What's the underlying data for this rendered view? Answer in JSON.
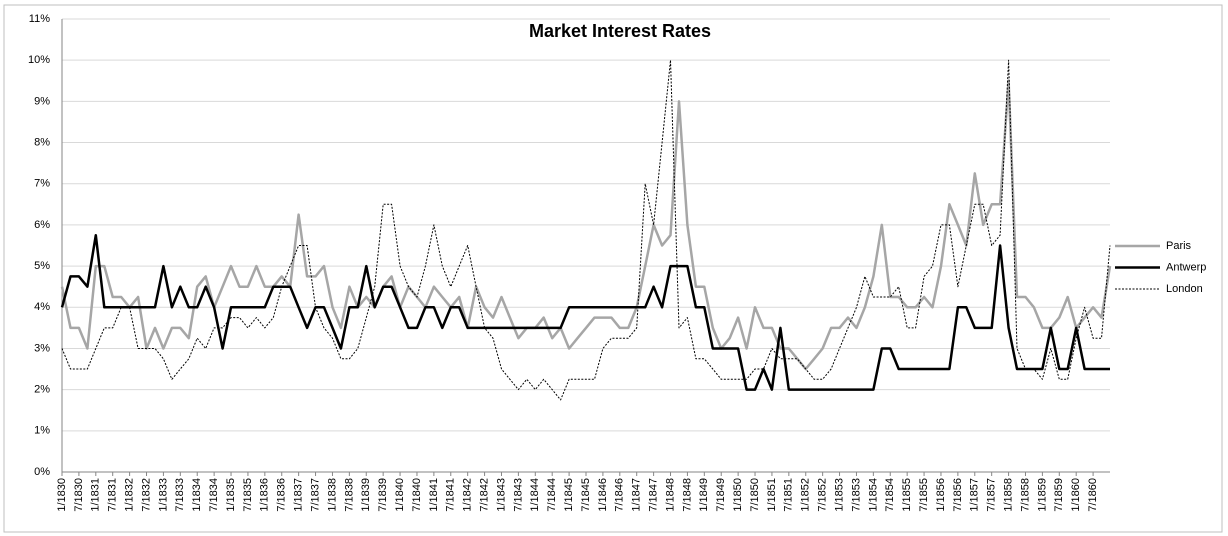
{
  "chart_data": {
    "type": "line",
    "title": "Market Interest Rates",
    "categories": [
      "1/1830",
      null,
      "7/1830",
      null,
      "1/1831",
      null,
      "7/1831",
      null,
      "1/1832",
      null,
      "7/1832",
      null,
      "1/1833",
      null,
      "7/1833",
      null,
      "1/1834",
      null,
      "7/1834",
      null,
      "1/1835",
      null,
      "7/1835",
      null,
      "1/1836",
      null,
      "7/1836",
      null,
      "1/1837",
      null,
      "7/1837",
      null,
      "1/1838",
      null,
      "7/1838",
      null,
      "1/1839",
      null,
      "7/1839",
      null,
      "1/1840",
      null,
      "7/1840",
      null,
      "1/1841",
      null,
      "7/1841",
      null,
      "1/1842",
      null,
      "7/1842",
      null,
      "1/1843",
      null,
      "7/1843",
      null,
      "1/1844",
      null,
      "7/1844",
      null,
      "1/1845",
      null,
      "7/1845",
      null,
      "1/1846",
      null,
      "7/1846",
      null,
      "1/1847",
      null,
      "7/1847",
      null,
      "1/1848",
      null,
      "7/1848",
      null,
      "1/1849",
      null,
      "7/1849",
      null,
      "1/1850",
      null,
      "7/1850",
      null,
      "1/1851",
      null,
      "7/1851",
      null,
      "1/1852",
      null,
      "7/1852",
      null,
      "1/1853",
      null,
      "7/1853",
      null,
      "1/1854",
      null,
      "7/1854",
      null,
      "1/1855",
      null,
      "7/1855",
      null,
      "1/1856",
      null,
      "7/1856",
      null,
      "1/1857",
      null,
      "7/1857",
      null,
      "1/1858",
      null,
      "7/1858",
      null,
      "1/1859",
      null,
      "7/1859",
      null,
      "1/1860",
      null,
      "7/1860",
      null,
      null
    ],
    "series": [
      {
        "name": "Paris",
        "color": "#a6a6a6",
        "width": 2.5,
        "dash": false,
        "values": [
          4.5,
          3.5,
          3.5,
          3,
          5,
          5,
          4.25,
          4.25,
          4,
          4.25,
          3,
          3.5,
          3,
          3.5,
          3.5,
          3.25,
          4.5,
          4.75,
          4,
          4.5,
          5,
          4.5,
          4.5,
          5,
          4.5,
          4.5,
          4.75,
          4.5,
          6.25,
          4.75,
          4.75,
          5,
          4,
          3.5,
          4.5,
          4,
          4.25,
          4,
          4.5,
          4.75,
          4,
          4.5,
          4.25,
          4,
          4.5,
          4.25,
          4,
          4.25,
          3.5,
          4.5,
          4,
          3.75,
          4.25,
          3.75,
          3.25,
          3.5,
          3.5,
          3.75,
          3.25,
          3.5,
          3,
          3.25,
          3.5,
          3.75,
          3.75,
          3.75,
          3.5,
          3.5,
          4,
          5,
          6,
          5.5,
          5.75,
          9,
          6,
          4.5,
          4.5,
          3.5,
          3,
          3.25,
          3.75,
          3,
          4,
          3.5,
          3.5,
          3,
          3,
          2.75,
          2.5,
          2.75,
          3,
          3.5,
          3.5,
          3.75,
          3.5,
          4,
          4.75,
          6,
          4.25,
          4.25,
          4,
          4,
          4.25,
          4,
          5,
          6.5,
          6,
          5.5,
          7.25,
          6,
          6.5,
          6.5,
          9.5,
          4.25,
          4.25,
          4,
          3.5,
          3.5,
          3.75,
          4.25,
          3.5,
          3.75,
          4,
          3.75,
          5
        ]
      },
      {
        "name": "Antwerp",
        "color": "#000000",
        "width": 2.5,
        "dash": false,
        "values": [
          4,
          4.75,
          4.75,
          4.5,
          5.75,
          4,
          4,
          4,
          4,
          4,
          4,
          4,
          5,
          4,
          4.5,
          4,
          4,
          4.5,
          4,
          3,
          4,
          4,
          4,
          4,
          4,
          4.5,
          4.5,
          4.5,
          4,
          3.5,
          4,
          4,
          3.5,
          3,
          4,
          4,
          5,
          4,
          4.5,
          4.5,
          4,
          3.5,
          3.5,
          4,
          4,
          3.5,
          4,
          4,
          3.5,
          3.5,
          3.5,
          3.5,
          3.5,
          3.5,
          3.5,
          3.5,
          3.5,
          3.5,
          3.5,
          3.5,
          4,
          4,
          4,
          4,
          4,
          4,
          4,
          4,
          4,
          4,
          4.5,
          4,
          5,
          5,
          5,
          4,
          4,
          3,
          3,
          3,
          3,
          2,
          2,
          2.5,
          2,
          3.5,
          2,
          2,
          2,
          2,
          2,
          2,
          2,
          2,
          2,
          2,
          2,
          3,
          3,
          2.5,
          2.5,
          2.5,
          2.5,
          2.5,
          2.5,
          2.5,
          4,
          4,
          3.5,
          3.5,
          3.5,
          5.5,
          3.5,
          2.5,
          2.5,
          2.5,
          2.5,
          3.5,
          2.5,
          2.5,
          3.5,
          2.5,
          2.5,
          2.5,
          2.5
        ]
      },
      {
        "name": "London",
        "color": "#000000",
        "width": 1,
        "dash": true,
        "values": [
          3,
          2.5,
          2.5,
          2.5,
          3,
          3.5,
          3.5,
          4,
          4,
          3,
          3,
          3,
          2.75,
          2.25,
          2.5,
          2.75,
          3.25,
          3,
          3.5,
          3.5,
          3.75,
          3.75,
          3.5,
          3.75,
          3.5,
          3.75,
          4.5,
          5,
          5.5,
          5.5,
          4,
          3.5,
          3.25,
          2.75,
          2.75,
          3,
          3.75,
          4.5,
          6.5,
          6.5,
          5,
          4.5,
          4.25,
          5,
          6,
          5,
          4.5,
          5,
          5.5,
          4.5,
          3.5,
          3.25,
          2.5,
          2.25,
          2,
          2.25,
          2,
          2.25,
          2,
          1.75,
          2.25,
          2.25,
          2.25,
          2.25,
          3,
          3.25,
          3.25,
          3.25,
          3.5,
          7,
          6,
          8,
          10,
          3.5,
          3.75,
          2.75,
          2.75,
          2.5,
          2.25,
          2.25,
          2.25,
          2.25,
          2.5,
          2.5,
          3,
          2.75,
          2.75,
          2.75,
          2.5,
          2.25,
          2.25,
          2.5,
          3,
          3.5,
          4,
          4.75,
          4.25,
          4.25,
          4.25,
          4.5,
          3.5,
          3.5,
          4.75,
          5,
          6,
          6,
          4.5,
          5.5,
          6.5,
          6.5,
          5.5,
          5.75,
          10,
          3,
          2.5,
          2.5,
          2.25,
          3,
          2.25,
          2.25,
          3.25,
          4,
          3.25,
          3.25,
          5.5
        ]
      }
    ],
    "ylim": [
      0,
      11
    ],
    "yticks": [
      {
        "value": 0,
        "label": "0%"
      },
      {
        "value": 1,
        "label": "1%"
      },
      {
        "value": 2,
        "label": "2%"
      },
      {
        "value": 3,
        "label": "3%"
      },
      {
        "value": 4,
        "label": "4%"
      },
      {
        "value": 5,
        "label": "5%"
      },
      {
        "value": 6,
        "label": "6%"
      },
      {
        "value": 7,
        "label": "7%"
      },
      {
        "value": 8,
        "label": "8%"
      },
      {
        "value": 9,
        "label": "9%"
      },
      {
        "value": 10,
        "label": "10%"
      },
      {
        "value": 11,
        "label": "11%"
      }
    ],
    "grid": true,
    "legend": "right"
  }
}
